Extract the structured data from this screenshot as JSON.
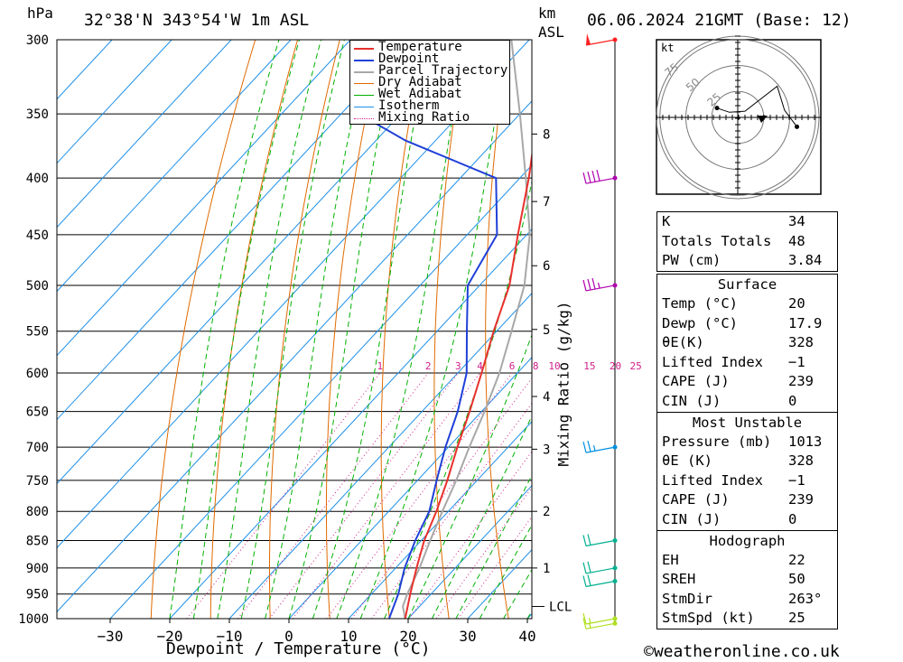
{
  "header": {
    "unit_pressure": "hPa",
    "location": "32°38'N 343°54'W 1m ASL",
    "unit_km": "km",
    "unit_asl": "ASL",
    "datetime": "06.06.2024 21GMT (Base: 12)"
  },
  "chart_data": {
    "type": "line",
    "xlabel": "Dewpoint / Temperature (°C)",
    "ylabel": "hPa",
    "mixing_ratio_label": "Mixing Ratio (g/kg)",
    "x_ticks": [
      -30,
      -20,
      -10,
      0,
      10,
      20,
      30,
      40
    ],
    "p_ticks": [
      300,
      350,
      400,
      450,
      500,
      550,
      600,
      650,
      700,
      750,
      800,
      850,
      900,
      950,
      1000
    ],
    "km_ticks": [
      {
        "km": 1,
        "p": 900
      },
      {
        "km": 2,
        "p": 800
      },
      {
        "km": 3,
        "p": 703
      },
      {
        "km": 4,
        "p": 630
      },
      {
        "km": 5,
        "p": 548
      },
      {
        "km": 6,
        "p": 480
      },
      {
        "km": 7,
        "p": 420
      },
      {
        "km": 8,
        "p": 365
      }
    ],
    "lcl": {
      "label": "LCL",
      "p": 975
    },
    "mixing_ratio_values": [
      "1",
      "2",
      "3",
      "4",
      "6",
      "8",
      "10",
      "15",
      "20",
      "25"
    ],
    "legend": [
      "Temperature",
      "Dewpoint",
      "Parcel Trajectory",
      "Dry Adiabat",
      "Wet Adiabat",
      "Isotherm",
      "Mixing Ratio"
    ],
    "colors": {
      "temperature": "#e8302c",
      "dewpoint": "#2040d8",
      "parcel": "#a8a8a8",
      "dry": "#e06a00",
      "wet": "#00b000",
      "isotherm": "#1e90e8",
      "mixing": "#d0208a"
    },
    "series": [
      {
        "name": "Temperature",
        "points": [
          [
            1013,
            20.0
          ],
          [
            1000,
            19.5
          ],
          [
            950,
            16.5
          ],
          [
            900,
            13.5
          ],
          [
            850,
            10.5
          ],
          [
            800,
            8.0
          ],
          [
            750,
            5.0
          ],
          [
            700,
            1.5
          ],
          [
            650,
            -2.0
          ],
          [
            600,
            -6.0
          ],
          [
            550,
            -10.5
          ],
          [
            500,
            -15.0
          ],
          [
            450,
            -21.5
          ],
          [
            400,
            -28.5
          ],
          [
            350,
            -37.0
          ],
          [
            300,
            -46.0
          ]
        ]
      },
      {
        "name": "Dewpoint",
        "points": [
          [
            1013,
            17.9
          ],
          [
            1000,
            16.8
          ],
          [
            950,
            14.5
          ],
          [
            900,
            11.5
          ],
          [
            850,
            9.0
          ],
          [
            800,
            6.8
          ],
          [
            750,
            3.2
          ],
          [
            700,
            -0.5
          ],
          [
            650,
            -4.0
          ],
          [
            600,
            -8.5
          ],
          [
            550,
            -15.0
          ],
          [
            500,
            -22.0
          ],
          [
            450,
            -25.0
          ],
          [
            400,
            -34.0
          ],
          [
            370,
            -55.0
          ],
          [
            350,
            -67.0
          ],
          [
            300,
            -76.0
          ]
        ]
      },
      {
        "name": "Parcel Trajectory",
        "points": [
          [
            1013,
            20.0
          ],
          [
            1000,
            19.5
          ],
          [
            975,
            17.2
          ],
          [
            950,
            16.0
          ],
          [
            900,
            14.0
          ],
          [
            850,
            11.5
          ],
          [
            800,
            9.0
          ],
          [
            750,
            6.5
          ],
          [
            700,
            3.5
          ],
          [
            650,
            0.5
          ],
          [
            600,
            -3.0
          ],
          [
            550,
            -7.5
          ],
          [
            500,
            -12.5
          ],
          [
            450,
            -19.5
          ],
          [
            400,
            -29.0
          ],
          [
            350,
            -40.0
          ],
          [
            300,
            -53.0
          ]
        ]
      }
    ],
    "wind_barbs": [
      {
        "p": 300,
        "flags": 1,
        "full": 0,
        "half": 0,
        "color": "#ff2020"
      },
      {
        "p": 400,
        "flags": 0,
        "full": 4,
        "half": 0,
        "color": "#b000b0"
      },
      {
        "p": 500,
        "flags": 0,
        "full": 3,
        "half": 1,
        "color": "#b000b0"
      },
      {
        "p": 700,
        "flags": 0,
        "full": 2,
        "half": 1,
        "color": "#0090e0"
      },
      {
        "p": 850,
        "flags": 0,
        "full": 2,
        "half": 0,
        "color": "#00b090"
      },
      {
        "p": 900,
        "flags": 0,
        "full": 2,
        "half": 0,
        "color": "#00b090"
      },
      {
        "p": 925,
        "flags": 0,
        "full": 2,
        "half": 0,
        "color": "#00b090"
      },
      {
        "p": 1000,
        "flags": 0,
        "full": 1,
        "half": 1,
        "color": "#b0e020"
      },
      {
        "p": 1010,
        "flags": 0,
        "full": 1,
        "half": 1,
        "color": "#b0e020"
      }
    ],
    "hodograph": {
      "unit": "kt",
      "rings": [
        25,
        50,
        75
      ],
      "points": [
        [
          57,
          -9
        ],
        [
          45,
          7
        ],
        [
          38,
          30
        ],
        [
          7,
          6
        ],
        [
          -8,
          5
        ],
        [
          -20,
          9
        ]
      ]
    }
  },
  "indices": [
    {
      "label": "K",
      "value": "34"
    },
    {
      "label": "Totals Totals",
      "value": "48"
    },
    {
      "label": "PW (cm)",
      "value": "3.84"
    }
  ],
  "surface": {
    "title": "Surface",
    "rows": [
      {
        "label": "Temp (°C)",
        "value": "20"
      },
      {
        "label": "Dewp (°C)",
        "value": "17.9"
      },
      {
        "label": "θE(K)",
        "value": "328"
      },
      {
        "label": "Lifted Index",
        "value": "−1"
      },
      {
        "label": "CAPE (J)",
        "value": "239"
      },
      {
        "label": "CIN (J)",
        "value": "0"
      }
    ]
  },
  "most_unstable": {
    "title": "Most Unstable",
    "rows": [
      {
        "label": "Pressure (mb)",
        "value": "1013"
      },
      {
        "label": "θE (K)",
        "value": "328"
      },
      {
        "label": "Lifted Index",
        "value": "−1"
      },
      {
        "label": "CAPE (J)",
        "value": "239"
      },
      {
        "label": "CIN (J)",
        "value": "0"
      }
    ]
  },
  "hodograph_table": {
    "title": "Hodograph",
    "rows": [
      {
        "label": "EH",
        "value": "22"
      },
      {
        "label": "SREH",
        "value": "50"
      },
      {
        "label": "StmDir",
        "value": "263°"
      },
      {
        "label": "StmSpd (kt)",
        "value": "25"
      }
    ]
  },
  "footer": {
    "copyright": "©weatheronline.co.uk"
  }
}
